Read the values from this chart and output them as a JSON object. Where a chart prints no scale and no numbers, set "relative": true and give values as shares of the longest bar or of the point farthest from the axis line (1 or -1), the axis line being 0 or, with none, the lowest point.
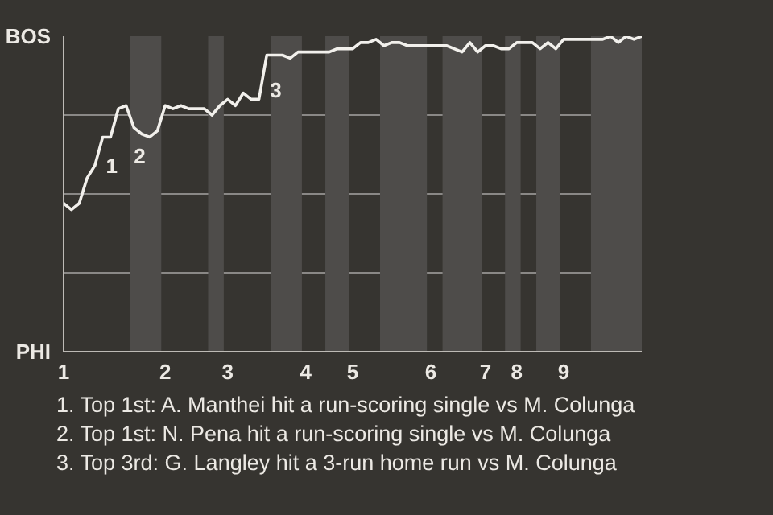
{
  "chart_data": {
    "type": "line",
    "relative": true,
    "categories": [
      "1",
      null,
      null,
      null,
      null,
      null,
      null,
      null,
      null,
      null,
      null,
      null,
      null,
      "2",
      null,
      null,
      null,
      null,
      null,
      null,
      null,
      "3",
      null,
      null,
      null,
      null,
      null,
      null,
      null,
      null,
      null,
      "4",
      null,
      null,
      null,
      null,
      null,
      "5",
      null,
      null,
      null,
      null,
      null,
      null,
      null,
      null,
      null,
      "6",
      null,
      null,
      null,
      null,
      null,
      null,
      "7",
      null,
      null,
      null,
      "8",
      null,
      null,
      null,
      null,
      null,
      "9",
      null,
      null,
      null,
      null,
      null,
      null,
      null,
      null,
      null,
      null
    ],
    "series": [
      {
        "color": "#f2f0ec",
        "values": [
          0.47,
          0.45,
          0.47,
          0.55,
          0.59,
          0.68,
          0.68,
          0.77,
          0.78,
          0.71,
          0.69,
          0.68,
          0.7,
          0.78,
          0.77,
          0.78,
          0.77,
          0.77,
          0.77,
          0.75,
          0.78,
          0.8,
          0.78,
          0.82,
          0.8,
          0.8,
          0.94,
          0.94,
          0.94,
          0.93,
          0.95,
          0.95,
          0.95,
          0.95,
          0.95,
          0.96,
          0.96,
          0.96,
          0.98,
          0.98,
          0.99,
          0.97,
          0.98,
          0.98,
          0.97,
          0.97,
          0.97,
          0.97,
          0.97,
          0.97,
          0.96,
          0.95,
          0.98,
          0.95,
          0.97,
          0.97,
          0.96,
          0.96,
          0.98,
          0.98,
          0.98,
          0.96,
          0.98,
          0.96,
          0.99,
          0.99,
          0.99,
          0.99,
          0.99,
          0.99,
          1.0,
          0.98,
          1.0,
          0.99,
          1.0
        ]
      }
    ],
    "grid": "y",
    "marker": "none",
    "line_style": "solid",
    "annotations": [
      "BOS",
      "PHI",
      "1",
      "2",
      "3",
      "1. Top 1st: A. Manthei hit a run-scoring single vs M. Colunga",
      "2. Top 1st: N. Pena hit a run-scoring single vs M. Colunga",
      "3. Top 3rd: G. Langley hit a 3-run home run vs M. Colunga"
    ]
  }
}
